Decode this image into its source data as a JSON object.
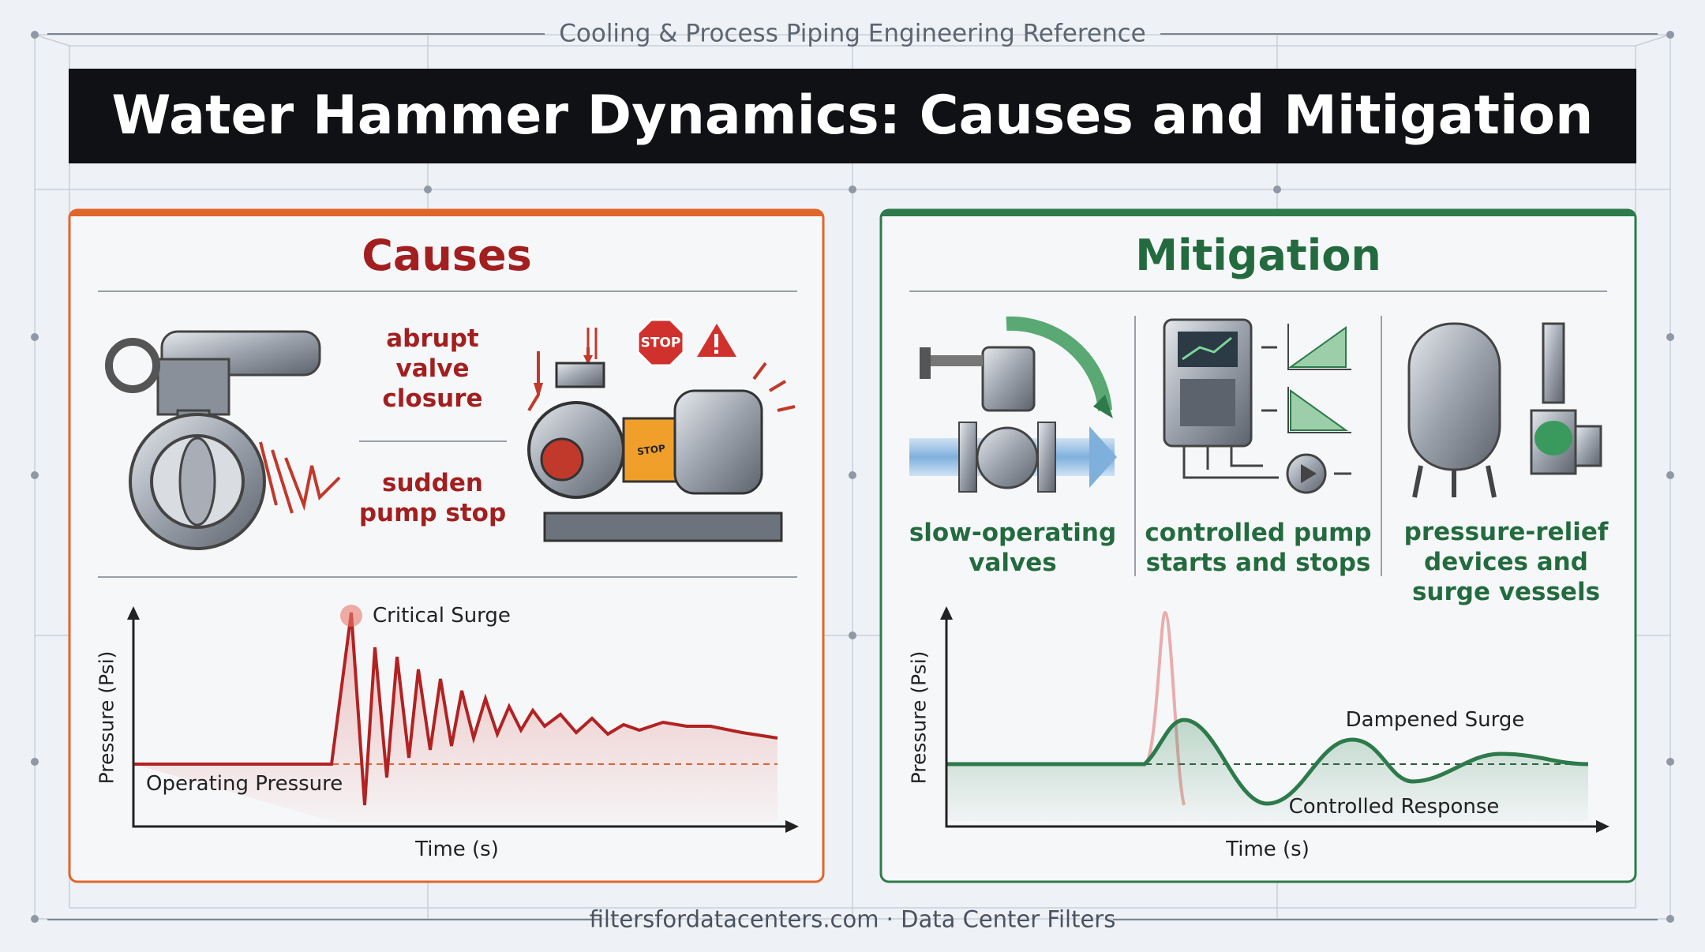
{
  "header": {
    "subtitle": "Cooling & Process Piping Engineering Reference",
    "title": "Water Hammer Dynamics: Causes and Mitigation"
  },
  "causes": {
    "title": "Causes",
    "items": [
      {
        "lines": [
          "abrupt",
          "valve",
          "closure"
        ]
      },
      {
        "lines": [
          "sudden",
          "pump stop"
        ]
      }
    ],
    "icons": {
      "stop_sign": "STOP",
      "pump_label": "STOP"
    },
    "chart": {
      "y_label": "Pressure (Psi)",
      "x_label": "Time (s)",
      "annotations": [
        "Critical Surge",
        "Operating Pressure"
      ]
    }
  },
  "mitigation": {
    "title": "Mitigation",
    "items": [
      {
        "lines": [
          "slow-operating",
          "valves"
        ]
      },
      {
        "lines": [
          "controlled pump",
          "starts and stops"
        ]
      },
      {
        "lines": [
          "pressure-relief",
          "devices and",
          "surge vessels"
        ]
      }
    ],
    "chart": {
      "y_label": "Pressure (Psi)",
      "x_label": "Time (s)",
      "annotations": [
        "Dampened Surge",
        "Controlled Response"
      ]
    }
  },
  "footer": {
    "text": "filtersfordatacenters.com · Data Center Filters"
  }
}
